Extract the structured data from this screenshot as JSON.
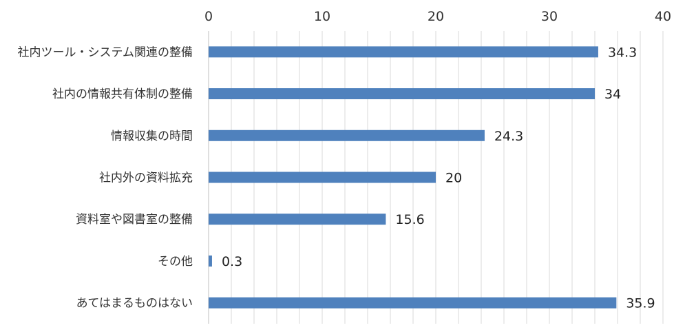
{
  "chart_data": {
    "type": "bar",
    "orientation": "horizontal",
    "categories": [
      "社内ツール・システム関連の整備",
      "社内の情報共有体制の整備",
      "情報収集の時間",
      "社内外の資料拡充",
      "資料室や図書室の整備",
      "その他",
      "あてはまるものはない"
    ],
    "values": [
      34.3,
      34,
      24.3,
      20,
      15.6,
      0.3,
      35.9
    ],
    "value_labels": [
      "34.3",
      "34",
      "24.3",
      "20",
      "15.6",
      "0.3",
      "35.9"
    ],
    "x_ticks": [
      "0",
      "10",
      "20",
      "30",
      "40"
    ],
    "xlim": [
      0,
      40
    ],
    "axis_position": "top",
    "grid": true,
    "bar_color": "#4F81BD",
    "grid_color": "#D9D9D9"
  }
}
